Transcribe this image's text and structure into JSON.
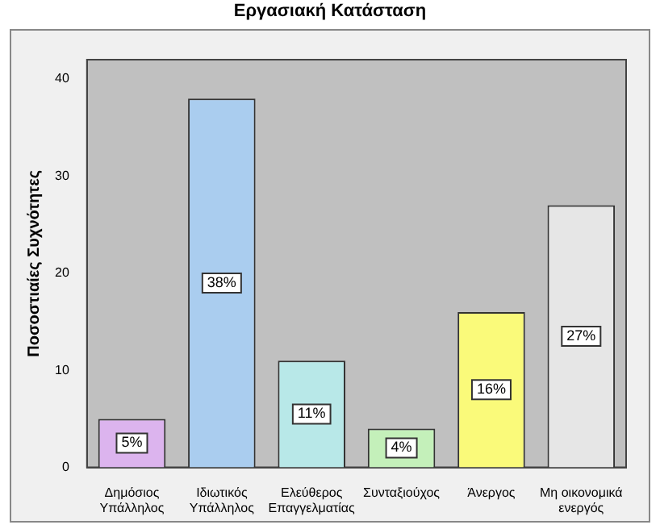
{
  "chart_data": {
    "type": "bar",
    "title": "Εργασιακή Κατάσταση",
    "ylabel": "Ποσοστιαίες Συχνότητες",
    "categories": [
      "Δημόσιος\nΥπάλληλος",
      "Ιδιωτικός\nΥπάλληλος",
      "Ελεύθερος\nΕπαγγελματίας",
      "Συνταξιούχος",
      "Άνεργος",
      "Μη οικονομικά\nενεργός"
    ],
    "values": [
      5,
      38,
      11,
      4,
      16,
      27
    ],
    "value_labels": [
      "5%",
      "38%",
      "11%",
      "4%",
      "16%",
      "27%"
    ],
    "colors": [
      "#dcb4ee",
      "#aacdef",
      "#b8e8e8",
      "#c4f0ba",
      "#fafa7a",
      "#e6e6e6"
    ],
    "ylim": [
      0,
      42
    ],
    "yticks": [
      0,
      10,
      20,
      30,
      40
    ],
    "grid": false,
    "legend": false
  }
}
